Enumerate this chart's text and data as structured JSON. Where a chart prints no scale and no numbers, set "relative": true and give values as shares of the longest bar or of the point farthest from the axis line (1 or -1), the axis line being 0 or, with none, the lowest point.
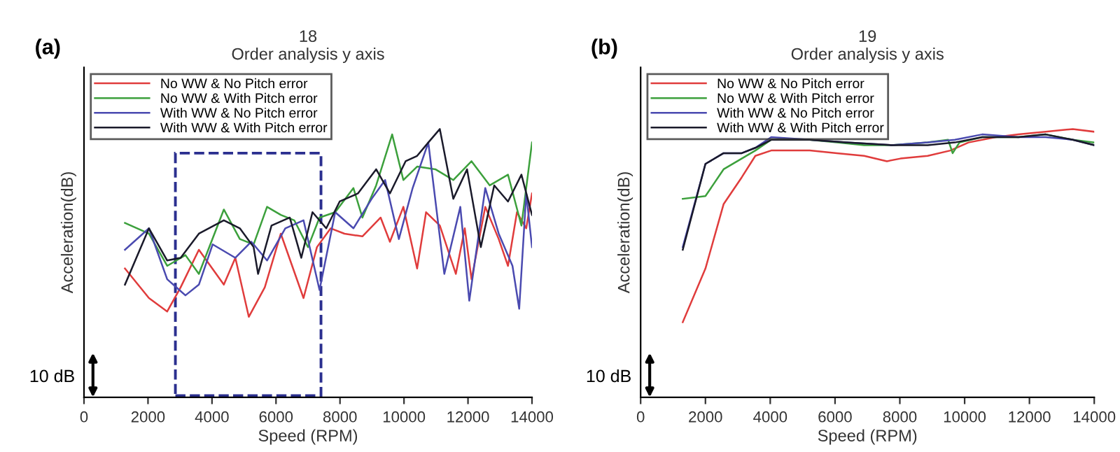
{
  "chart_data": [
    {
      "type": "line",
      "title": "18",
      "subtitle": "Order analysis y axis",
      "xlabel": "Speed (RPM)",
      "ylabel": "Acceleration(dB)",
      "relative": true,
      "tick_labels": "x",
      "legend": "top left",
      "grid": false,
      "xlim": [
        0,
        14000
      ],
      "xticks": [
        0,
        2000,
        4000,
        6000,
        8000,
        10000,
        12000,
        14000
      ],
      "annotations": [
        "(a)",
        "10 dB"
      ],
      "series": [
        {
          "name": "No WW & No Pitch error",
          "color": "#e03c3c",
          "x": [
            1280,
            2030,
            2600,
            3020,
            3590,
            4370,
            4730,
            5150,
            5650,
            6150,
            6860,
            7280,
            7710,
            8140,
            8700,
            9270,
            9560,
            9980,
            10410,
            10690,
            11120,
            11620,
            11900,
            12110,
            12540,
            12960,
            13250,
            13530,
            13820,
            14000
          ],
          "values": [
            0.48,
            0.37,
            0.32,
            0.41,
            0.55,
            0.42,
            0.52,
            0.3,
            0.41,
            0.61,
            0.37,
            0.56,
            0.63,
            0.61,
            0.6,
            0.67,
            0.58,
            0.71,
            0.48,
            0.69,
            0.64,
            0.46,
            0.63,
            0.44,
            0.71,
            0.59,
            0.49,
            0.69,
            0.63,
            0.76
          ]
        },
        {
          "name": "No WW & With Pitch error",
          "color": "#3ca03c",
          "x": [
            1280,
            2030,
            2600,
            3170,
            3590,
            4370,
            4870,
            5300,
            5720,
            6150,
            6570,
            7000,
            7360,
            7850,
            8420,
            8700,
            9130,
            9630,
            9980,
            10410,
            10980,
            11540,
            12110,
            12680,
            13250,
            13670,
            14000
          ],
          "values": [
            0.65,
            0.61,
            0.49,
            0.53,
            0.46,
            0.7,
            0.59,
            0.57,
            0.71,
            0.68,
            0.66,
            0.56,
            0.67,
            0.69,
            0.78,
            0.67,
            0.79,
            0.98,
            0.81,
            0.86,
            0.85,
            0.81,
            0.88,
            0.79,
            0.83,
            0.64,
            0.95
          ]
        },
        {
          "name": "With WW & No Pitch error",
          "color": "#4a4ab0",
          "x": [
            1280,
            2030,
            2600,
            3170,
            3590,
            4020,
            4730,
            5230,
            5720,
            6290,
            6860,
            7360,
            7850,
            8420,
            8990,
            9410,
            9840,
            10270,
            10760,
            11260,
            11760,
            12040,
            12540,
            12960,
            13390,
            13600,
            13820,
            14000
          ],
          "values": [
            0.55,
            0.63,
            0.44,
            0.38,
            0.42,
            0.57,
            0.52,
            0.58,
            0.51,
            0.63,
            0.66,
            0.4,
            0.69,
            0.63,
            0.74,
            0.81,
            0.59,
            0.78,
            0.95,
            0.46,
            0.71,
            0.36,
            0.78,
            0.61,
            0.49,
            0.33,
            0.76,
            0.56
          ]
        },
        {
          "name": "With WW & With Pitch error",
          "color": "#1a1a2a",
          "x": [
            1280,
            2030,
            2600,
            3020,
            3590,
            4370,
            4870,
            5300,
            5440,
            5860,
            6430,
            6790,
            7140,
            7570,
            7990,
            8560,
            9130,
            9560,
            10050,
            10410,
            10760,
            11120,
            11540,
            11970,
            12400,
            12820,
            13250,
            13670,
            14000
          ],
          "values": [
            0.42,
            0.63,
            0.51,
            0.52,
            0.61,
            0.66,
            0.63,
            0.56,
            0.46,
            0.64,
            0.67,
            0.52,
            0.69,
            0.63,
            0.73,
            0.76,
            0.85,
            0.76,
            0.88,
            0.9,
            0.95,
            1.0,
            0.74,
            0.85,
            0.56,
            0.79,
            0.73,
            0.83,
            0.68
          ]
        }
      ]
    },
    {
      "type": "line",
      "title": "19",
      "subtitle": "Order analysis y axis",
      "xlabel": "Speed (RPM)",
      "ylabel": "Acceleration(dB)",
      "relative": true,
      "tick_labels": "x",
      "legend": "top left",
      "grid": false,
      "xlim": [
        0,
        14000
      ],
      "xticks": [
        0,
        2000,
        4000,
        6000,
        8000,
        10000,
        12000,
        14000
      ],
      "annotations": [
        "(b)",
        "10 dB"
      ],
      "series": [
        {
          "name": "No WW & No Pitch error",
          "color": "#e03c3c",
          "x": [
            1300,
            2000,
            2560,
            3120,
            3540,
            4030,
            5220,
            6060,
            6900,
            7600,
            8020,
            8860,
            9560,
            10120,
            10960,
            11660,
            12500,
            13340,
            14000
          ],
          "values": [
            0.28,
            0.48,
            0.72,
            0.82,
            0.9,
            0.92,
            0.92,
            0.91,
            0.9,
            0.88,
            0.89,
            0.9,
            0.92,
            0.95,
            0.97,
            0.98,
            0.99,
            1.0,
            0.99
          ]
        },
        {
          "name": "No WW & With Pitch error",
          "color": "#3ca03c",
          "x": [
            1300,
            2000,
            2560,
            3120,
            3540,
            4030,
            5220,
            6060,
            6900,
            7740,
            8860,
            9490,
            9630,
            9840,
            10540,
            11660,
            12500,
            13340,
            14000
          ],
          "values": [
            0.74,
            0.75,
            0.85,
            0.89,
            0.92,
            0.96,
            0.96,
            0.95,
            0.94,
            0.94,
            0.95,
            0.96,
            0.91,
            0.95,
            0.97,
            0.97,
            0.98,
            0.96,
            0.95
          ]
        },
        {
          "name": "With WW & No Pitch error",
          "color": "#4a4ab0",
          "x": [
            1300,
            2000,
            2560,
            3120,
            3540,
            4030,
            5220,
            6340,
            7740,
            8860,
            9700,
            10540,
            11660,
            12500,
            13340,
            14000
          ],
          "values": [
            0.56,
            0.87,
            0.91,
            0.91,
            0.93,
            0.97,
            0.96,
            0.95,
            0.94,
            0.95,
            0.96,
            0.98,
            0.97,
            0.97,
            0.96,
            0.94
          ]
        },
        {
          "name": "With WW & With Pitch error",
          "color": "#1a1a2a",
          "x": [
            1300,
            2000,
            2560,
            3120,
            3540,
            4030,
            5220,
            6340,
            7740,
            8860,
            9700,
            10540,
            11660,
            12500,
            13340,
            14000
          ],
          "values": [
            0.55,
            0.87,
            0.91,
            0.91,
            0.93,
            0.96,
            0.96,
            0.95,
            0.94,
            0.94,
            0.95,
            0.97,
            0.97,
            0.98,
            0.96,
            0.94
          ]
        }
      ]
    }
  ]
}
